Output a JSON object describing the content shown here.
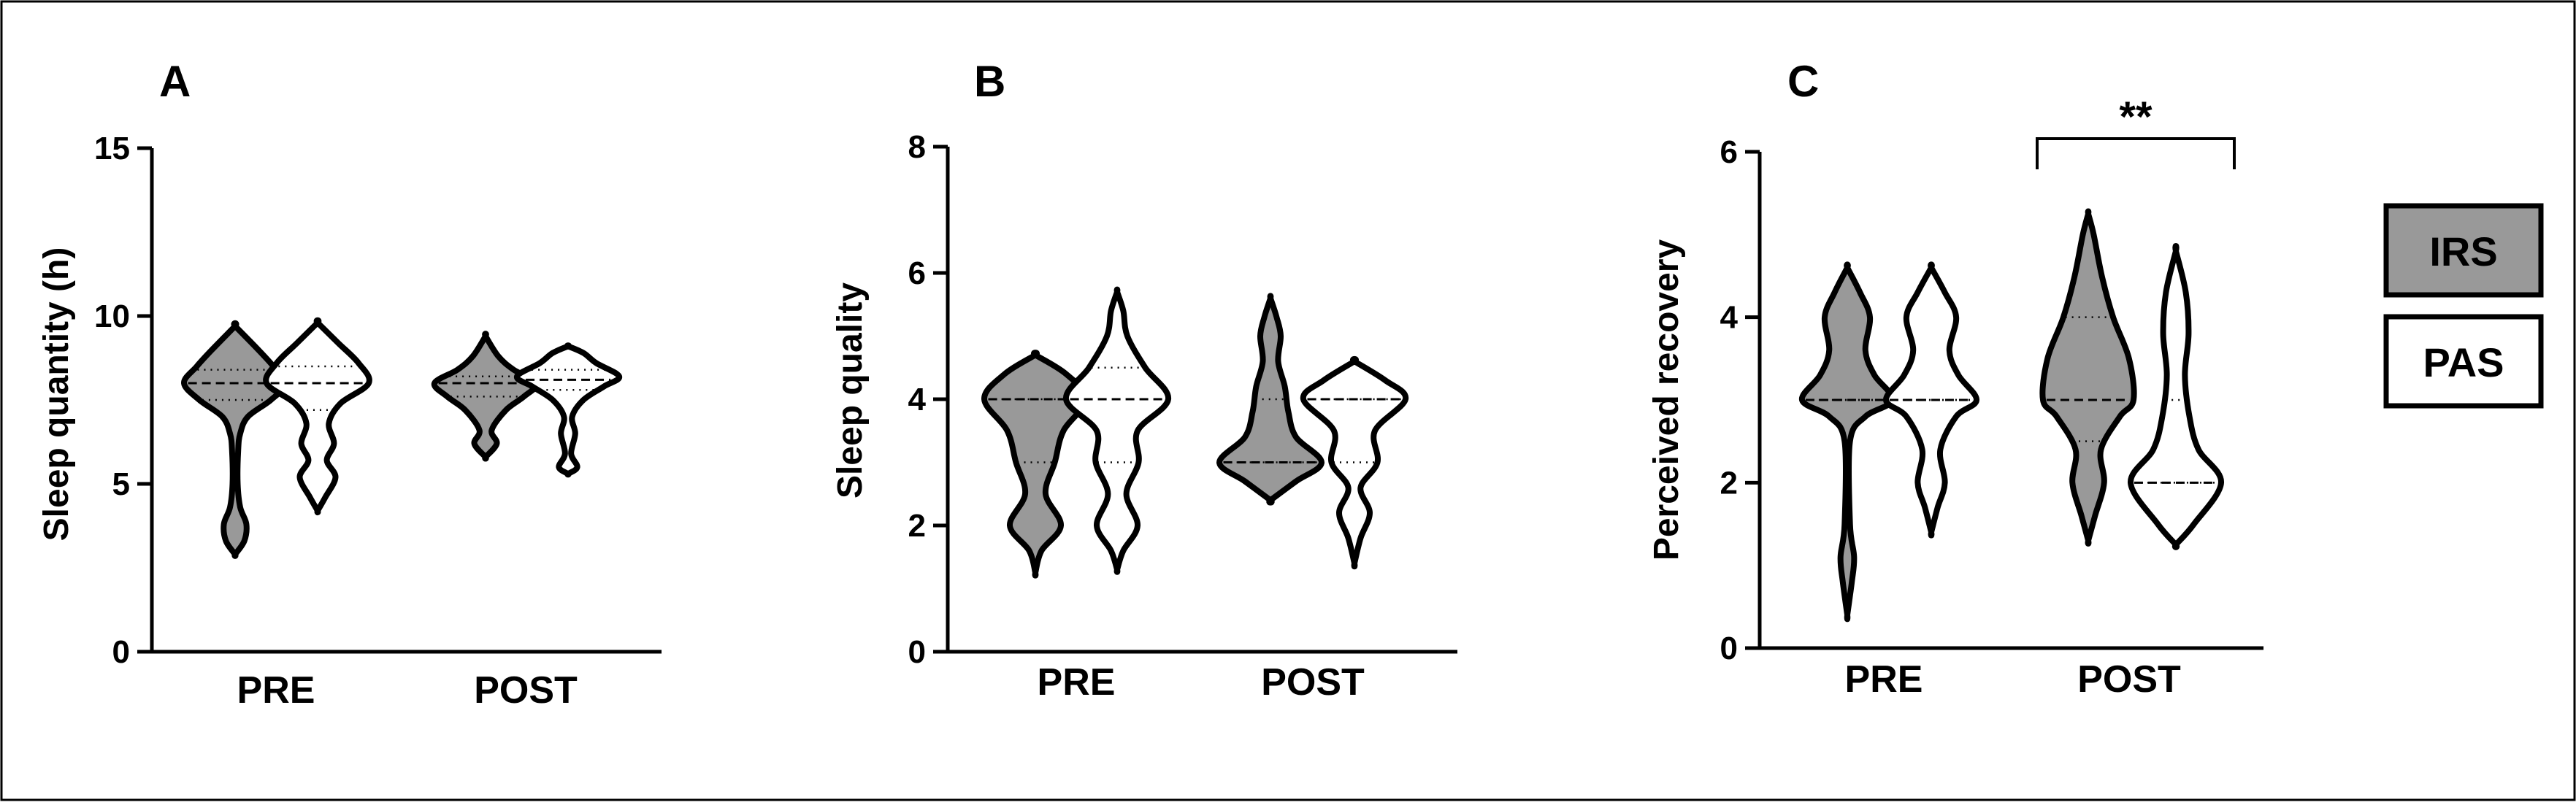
{
  "legend": {
    "items": [
      {
        "label": "IRS",
        "fill": "#999999"
      },
      {
        "label": "PAS",
        "fill": "#ffffff"
      }
    ]
  },
  "chart_data": [
    {
      "type": "violin",
      "panel": "A",
      "ylabel": "Sleep quantity (h)",
      "ylim": [
        0,
        15
      ],
      "yticks": [
        0,
        5,
        10,
        15
      ],
      "categories": [
        "PRE",
        "POST"
      ],
      "series": [
        {
          "name": "IRS",
          "violins": [
            {
              "category": "PRE",
              "median": 8.0,
              "q1": 7.5,
              "q3": 8.4,
              "profile": [
                [
                  2.9,
                  0.0
                ],
                [
                  3.3,
                  0.18
                ],
                [
                  3.8,
                  0.22
                ],
                [
                  4.3,
                  0.1
                ],
                [
                  5.0,
                  0.05
                ],
                [
                  6.0,
                  0.06
                ],
                [
                  6.5,
                  0.1
                ],
                [
                  7.0,
                  0.25
                ],
                [
                  7.5,
                  0.7
                ],
                [
                  8.0,
                  1.0
                ],
                [
                  8.5,
                  0.75
                ],
                [
                  9.0,
                  0.45
                ],
                [
                  9.7,
                  0.0
                ]
              ]
            },
            {
              "category": "POST",
              "median": 8.0,
              "q1": 7.6,
              "q3": 8.2,
              "profile": [
                [
                  5.8,
                  0.0
                ],
                [
                  6.2,
                  0.22
                ],
                [
                  6.6,
                  0.12
                ],
                [
                  7.2,
                  0.4
                ],
                [
                  7.6,
                  0.75
                ],
                [
                  8.0,
                  1.0
                ],
                [
                  8.4,
                  0.55
                ],
                [
                  8.8,
                  0.25
                ],
                [
                  9.4,
                  0.0
                ]
              ]
            }
          ]
        },
        {
          "name": "PAS",
          "violins": [
            {
              "category": "PRE",
              "median": 8.0,
              "q1": 7.2,
              "q3": 8.5,
              "profile": [
                [
                  4.2,
                  0.0
                ],
                [
                  4.6,
                  0.15
                ],
                [
                  5.2,
                  0.35
                ],
                [
                  5.7,
                  0.18
                ],
                [
                  6.2,
                  0.32
                ],
                [
                  6.8,
                  0.22
                ],
                [
                  7.4,
                  0.45
                ],
                [
                  8.0,
                  1.0
                ],
                [
                  8.6,
                  0.8
                ],
                [
                  9.2,
                  0.4
                ],
                [
                  9.8,
                  0.0
                ]
              ]
            },
            {
              "category": "POST",
              "median": 8.1,
              "q1": 7.8,
              "q3": 8.4,
              "profile": [
                [
                  5.3,
                  0.0
                ],
                [
                  5.5,
                  0.18
                ],
                [
                  5.9,
                  0.06
                ],
                [
                  6.5,
                  0.14
                ],
                [
                  7.0,
                  0.08
                ],
                [
                  7.5,
                  0.3
                ],
                [
                  7.9,
                  0.7
                ],
                [
                  8.2,
                  1.0
                ],
                [
                  8.6,
                  0.55
                ],
                [
                  8.9,
                  0.3
                ],
                [
                  9.1,
                  0.0
                ]
              ]
            }
          ]
        }
      ]
    },
    {
      "type": "violin",
      "panel": "B",
      "ylabel": "Sleep quality",
      "ylim": [
        0,
        8
      ],
      "yticks": [
        0,
        2,
        4,
        6,
        8
      ],
      "categories": [
        "PRE",
        "POST"
      ],
      "series": [
        {
          "name": "IRS",
          "violins": [
            {
              "category": "PRE",
              "median": 4.0,
              "q1": 3.0,
              "q3": 4.0,
              "profile": [
                [
                  1.25,
                  0.0
                ],
                [
                  1.6,
                  0.12
                ],
                [
                  2.0,
                  0.5
                ],
                [
                  2.5,
                  0.2
                ],
                [
                  3.0,
                  0.38
                ],
                [
                  3.5,
                  0.55
                ],
                [
                  4.0,
                  1.0
                ],
                [
                  4.4,
                  0.6
                ],
                [
                  4.7,
                  0.0
                ]
              ]
            },
            {
              "category": "POST",
              "median": 3.0,
              "q1": 3.0,
              "q3": 4.0,
              "profile": [
                [
                  2.4,
                  0.0
                ],
                [
                  2.7,
                  0.5
                ],
                [
                  3.0,
                  1.0
                ],
                [
                  3.4,
                  0.5
                ],
                [
                  3.8,
                  0.35
                ],
                [
                  4.2,
                  0.28
                ],
                [
                  4.6,
                  0.15
                ],
                [
                  5.0,
                  0.2
                ],
                [
                  5.3,
                  0.12
                ],
                [
                  5.6,
                  0.0
                ]
              ]
            }
          ]
        },
        {
          "name": "PAS",
          "violins": [
            {
              "category": "PRE",
              "median": 4.0,
              "q1": 3.0,
              "q3": 4.5,
              "profile": [
                [
                  1.3,
                  0.0
                ],
                [
                  1.6,
                  0.12
                ],
                [
                  2.0,
                  0.4
                ],
                [
                  2.5,
                  0.18
                ],
                [
                  3.0,
                  0.42
                ],
                [
                  3.5,
                  0.4
                ],
                [
                  4.0,
                  1.0
                ],
                [
                  4.5,
                  0.55
                ],
                [
                  5.0,
                  0.2
                ],
                [
                  5.4,
                  0.12
                ],
                [
                  5.7,
                  0.0
                ]
              ]
            },
            {
              "category": "POST",
              "median": 4.0,
              "q1": 3.0,
              "q3": 4.0,
              "profile": [
                [
                  1.4,
                  0.0
                ],
                [
                  1.8,
                  0.12
                ],
                [
                  2.2,
                  0.3
                ],
                [
                  2.6,
                  0.12
                ],
                [
                  3.0,
                  0.45
                ],
                [
                  3.5,
                  0.4
                ],
                [
                  4.0,
                  1.0
                ],
                [
                  4.3,
                  0.6
                ],
                [
                  4.6,
                  0.0
                ]
              ]
            }
          ]
        }
      ]
    },
    {
      "type": "violin",
      "panel": "C",
      "ylabel": "Perceived recovery",
      "ylim": [
        0,
        6
      ],
      "yticks": [
        0,
        2,
        4,
        6
      ],
      "categories": [
        "PRE",
        "POST"
      ],
      "series": [
        {
          "name": "IRS",
          "violins": [
            {
              "category": "PRE",
              "median": 3.0,
              "q1": 3.0,
              "q3": 3.0,
              "profile": [
                [
                  0.4,
                  0.0
                ],
                [
                  0.8,
                  0.1
                ],
                [
                  1.1,
                  0.15
                ],
                [
                  1.5,
                  0.06
                ],
                [
                  2.5,
                  0.06
                ],
                [
                  2.8,
                  0.4
                ],
                [
                  3.0,
                  1.0
                ],
                [
                  3.3,
                  0.6
                ],
                [
                  3.6,
                  0.4
                ],
                [
                  4.0,
                  0.5
                ],
                [
                  4.3,
                  0.28
                ],
                [
                  4.6,
                  0.0
                ]
              ]
            },
            {
              "category": "POST",
              "median": 3.0,
              "q1": 2.5,
              "q3": 4.0,
              "profile": [
                [
                  1.3,
                  0.0
                ],
                [
                  1.6,
                  0.15
                ],
                [
                  2.0,
                  0.35
                ],
                [
                  2.4,
                  0.28
                ],
                [
                  2.8,
                  0.7
                ],
                [
                  3.0,
                  1.0
                ],
                [
                  3.5,
                  0.9
                ],
                [
                  4.0,
                  0.55
                ],
                [
                  4.5,
                  0.3
                ],
                [
                  5.0,
                  0.12
                ],
                [
                  5.25,
                  0.0
                ]
              ]
            }
          ]
        },
        {
          "name": "PAS",
          "violins": [
            {
              "category": "PRE",
              "median": 3.0,
              "q1": 3.0,
              "q3": 3.0,
              "profile": [
                [
                  1.4,
                  0.0
                ],
                [
                  1.7,
                  0.14
                ],
                [
                  2.0,
                  0.3
                ],
                [
                  2.4,
                  0.2
                ],
                [
                  2.8,
                  0.55
                ],
                [
                  3.0,
                  1.0
                ],
                [
                  3.3,
                  0.6
                ],
                [
                  3.6,
                  0.4
                ],
                [
                  4.0,
                  0.55
                ],
                [
                  4.3,
                  0.3
                ],
                [
                  4.6,
                  0.0
                ]
              ]
            },
            {
              "category": "POST",
              "median": 2.0,
              "q1": 2.0,
              "q3": 3.0,
              "profile": [
                [
                  1.25,
                  0.0
                ],
                [
                  1.5,
                  0.4
                ],
                [
                  2.0,
                  1.0
                ],
                [
                  2.4,
                  0.5
                ],
                [
                  2.8,
                  0.3
                ],
                [
                  3.3,
                  0.2
                ],
                [
                  3.8,
                  0.28
                ],
                [
                  4.3,
                  0.22
                ],
                [
                  4.8,
                  0.0
                ]
              ]
            }
          ]
        }
      ],
      "significance": {
        "text": "**",
        "between": [
          "IRS",
          "PAS"
        ],
        "category": "POST"
      }
    }
  ]
}
